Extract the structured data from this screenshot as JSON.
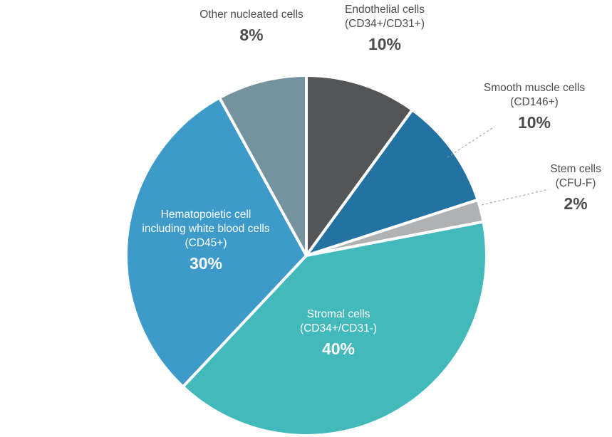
{
  "chart_data": {
    "type": "pie",
    "slices": [
      {
        "label": "Endothelial cells",
        "sublabel": "(CD34+/CD31+)",
        "value": 10,
        "pct_label": "10%",
        "color": "#545557"
      },
      {
        "label": "Smooth muscle cells",
        "sublabel": "(CD146+)",
        "value": 10,
        "pct_label": "10%",
        "color": "#2472a2"
      },
      {
        "label": "Stem cells",
        "sublabel": "(CFU-F)",
        "value": 2,
        "pct_label": "2%",
        "color": "#b0b1b3"
      },
      {
        "label": "Stromal cells",
        "sublabel": "(CD34+/CD31-)",
        "value": 40,
        "pct_label": "40%",
        "color": "#42b9bb"
      },
      {
        "label": "Hematopoietic cell",
        "label2": "including white blood cells",
        "sublabel": "(CD45+)",
        "value": 30,
        "pct_label": "30%",
        "color": "#3d9ac9"
      },
      {
        "label": "Other nucleated cells",
        "value": 8,
        "pct_label": "8%",
        "color": "#75939f"
      }
    ]
  }
}
